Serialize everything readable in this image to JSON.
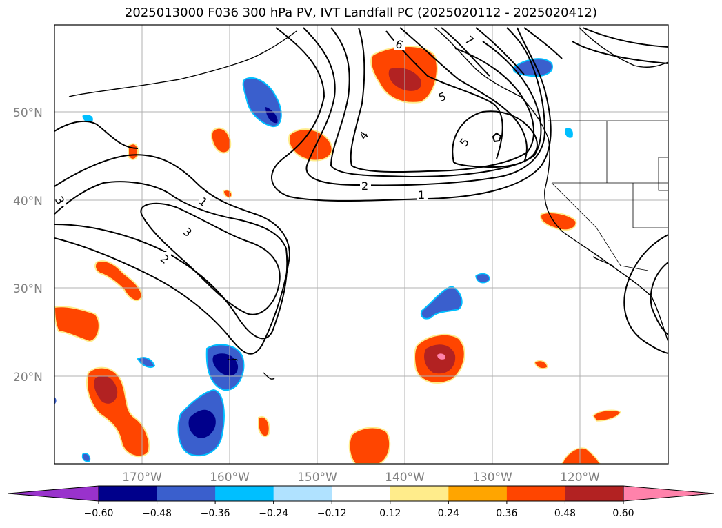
{
  "title": "2025013000 F036 300 hPa PV, IVT Landfall PC (2025020112 - 2025020412)",
  "lat_labels": [
    "50°N",
    "40°N",
    "30°N",
    "20°N"
  ],
  "lon_labels": [
    "170°W",
    "160°W",
    "150°W",
    "140°W",
    "130°W",
    "120°W"
  ],
  "contour_labels": [
    "1",
    "2",
    "3",
    "4",
    "5",
    "6",
    "7",
    "1",
    "2",
    "3",
    "5"
  ],
  "colorbar": {
    "colors": [
      "#9932cc",
      "#00008b",
      "#3a5fcd",
      "#00bfff",
      "#b0e2ff",
      "#ffffff",
      "#ffec8b",
      "#ffa500",
      "#ff4500",
      "#b22222",
      "#ff82ab"
    ],
    "tick_labels": [
      "−0.60",
      "−0.48",
      "−0.36",
      "−0.24",
      "−0.12",
      "0.12",
      "0.24",
      "0.36",
      "0.48",
      "0.60"
    ]
  }
}
